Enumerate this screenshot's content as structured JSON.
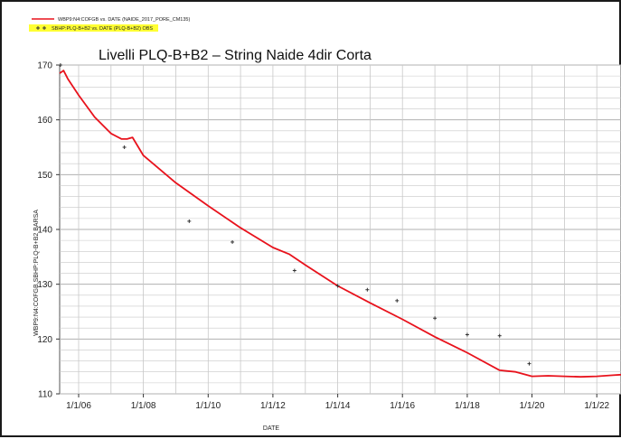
{
  "chart_data": {
    "type": "line",
    "title": "Livelli PLQ-B+B2 – String Naide 4dir Corta",
    "xlabel": "DATE",
    "ylabel": "WBP9:N4:COFGB,SBHP:PLQ-B+B2  BARSA",
    "xlim": [
      "2005-06-01",
      "2022-10-01"
    ],
    "ylim": [
      110,
      170
    ],
    "x_ticks": [
      "2006-01-01",
      "2008-01-01",
      "2010-01-01",
      "2012-01-01",
      "2014-01-01",
      "2016-01-01",
      "2018-01-01",
      "2020-01-01",
      "2022-01-01"
    ],
    "x_tick_labels": [
      "1/1/06",
      "1/1/08",
      "1/1/10",
      "1/1/12",
      "1/1/14",
      "1/1/16",
      "1/1/18",
      "1/1/20",
      "1/1/22"
    ],
    "y_ticks": [
      110,
      120,
      130,
      140,
      150,
      160,
      170
    ],
    "grid": true,
    "legend_position": "top-left",
    "colors": {
      "simulated": "#e8121c",
      "observed": "#333333",
      "legend_highlight": "#ffff33",
      "grid": "#c8c8c8"
    },
    "series": [
      {
        "name": "WBP9:N4:COFGB  vs.  DATE (NAIDE_2017_PORE_CM135)",
        "style": "line",
        "x": [
          "2005-06-01",
          "2005-07-15",
          "2005-09-01",
          "2006-01-01",
          "2006-07-01",
          "2007-01-01",
          "2007-05-01",
          "2007-07-01",
          "2007-09-01",
          "2008-01-01",
          "2009-01-01",
          "2010-01-01",
          "2011-01-01",
          "2012-01-01",
          "2012-07-01",
          "2013-01-01",
          "2014-01-01",
          "2015-01-01",
          "2016-01-01",
          "2017-01-01",
          "2018-01-01",
          "2019-01-01",
          "2019-07-01",
          "2020-01-01",
          "2020-07-01",
          "2021-01-01",
          "2021-07-01",
          "2022-01-01",
          "2022-07-01",
          "2022-10-01"
        ],
        "values": [
          168.5,
          169.0,
          167.5,
          164.5,
          160.5,
          157.5,
          156.5,
          156.5,
          156.8,
          153.5,
          148.5,
          144.3,
          140.3,
          136.7,
          135.5,
          133.5,
          129.7,
          126.6,
          123.6,
          120.4,
          117.5,
          114.3,
          114.0,
          113.2,
          113.3,
          113.2,
          113.1,
          113.2,
          113.4,
          113.5
        ]
      },
      {
        "name": "SBHP:PLQ-B+B2  vs.  DATE (PLQ-B+B2) OBS",
        "style": "markers",
        "x": [
          "2005-06-10",
          "2007-06-01",
          "2009-06-01",
          "2010-10-01",
          "2012-09-01",
          "2014-01-01",
          "2014-12-01",
          "2015-11-01",
          "2017-01-01",
          "2018-01-01",
          "2019-01-01",
          "2019-12-01"
        ],
        "values": [
          170.0,
          155.0,
          141.5,
          137.7,
          132.5,
          129.7,
          129.0,
          127.0,
          123.8,
          120.8,
          120.6,
          115.5
        ]
      }
    ]
  }
}
